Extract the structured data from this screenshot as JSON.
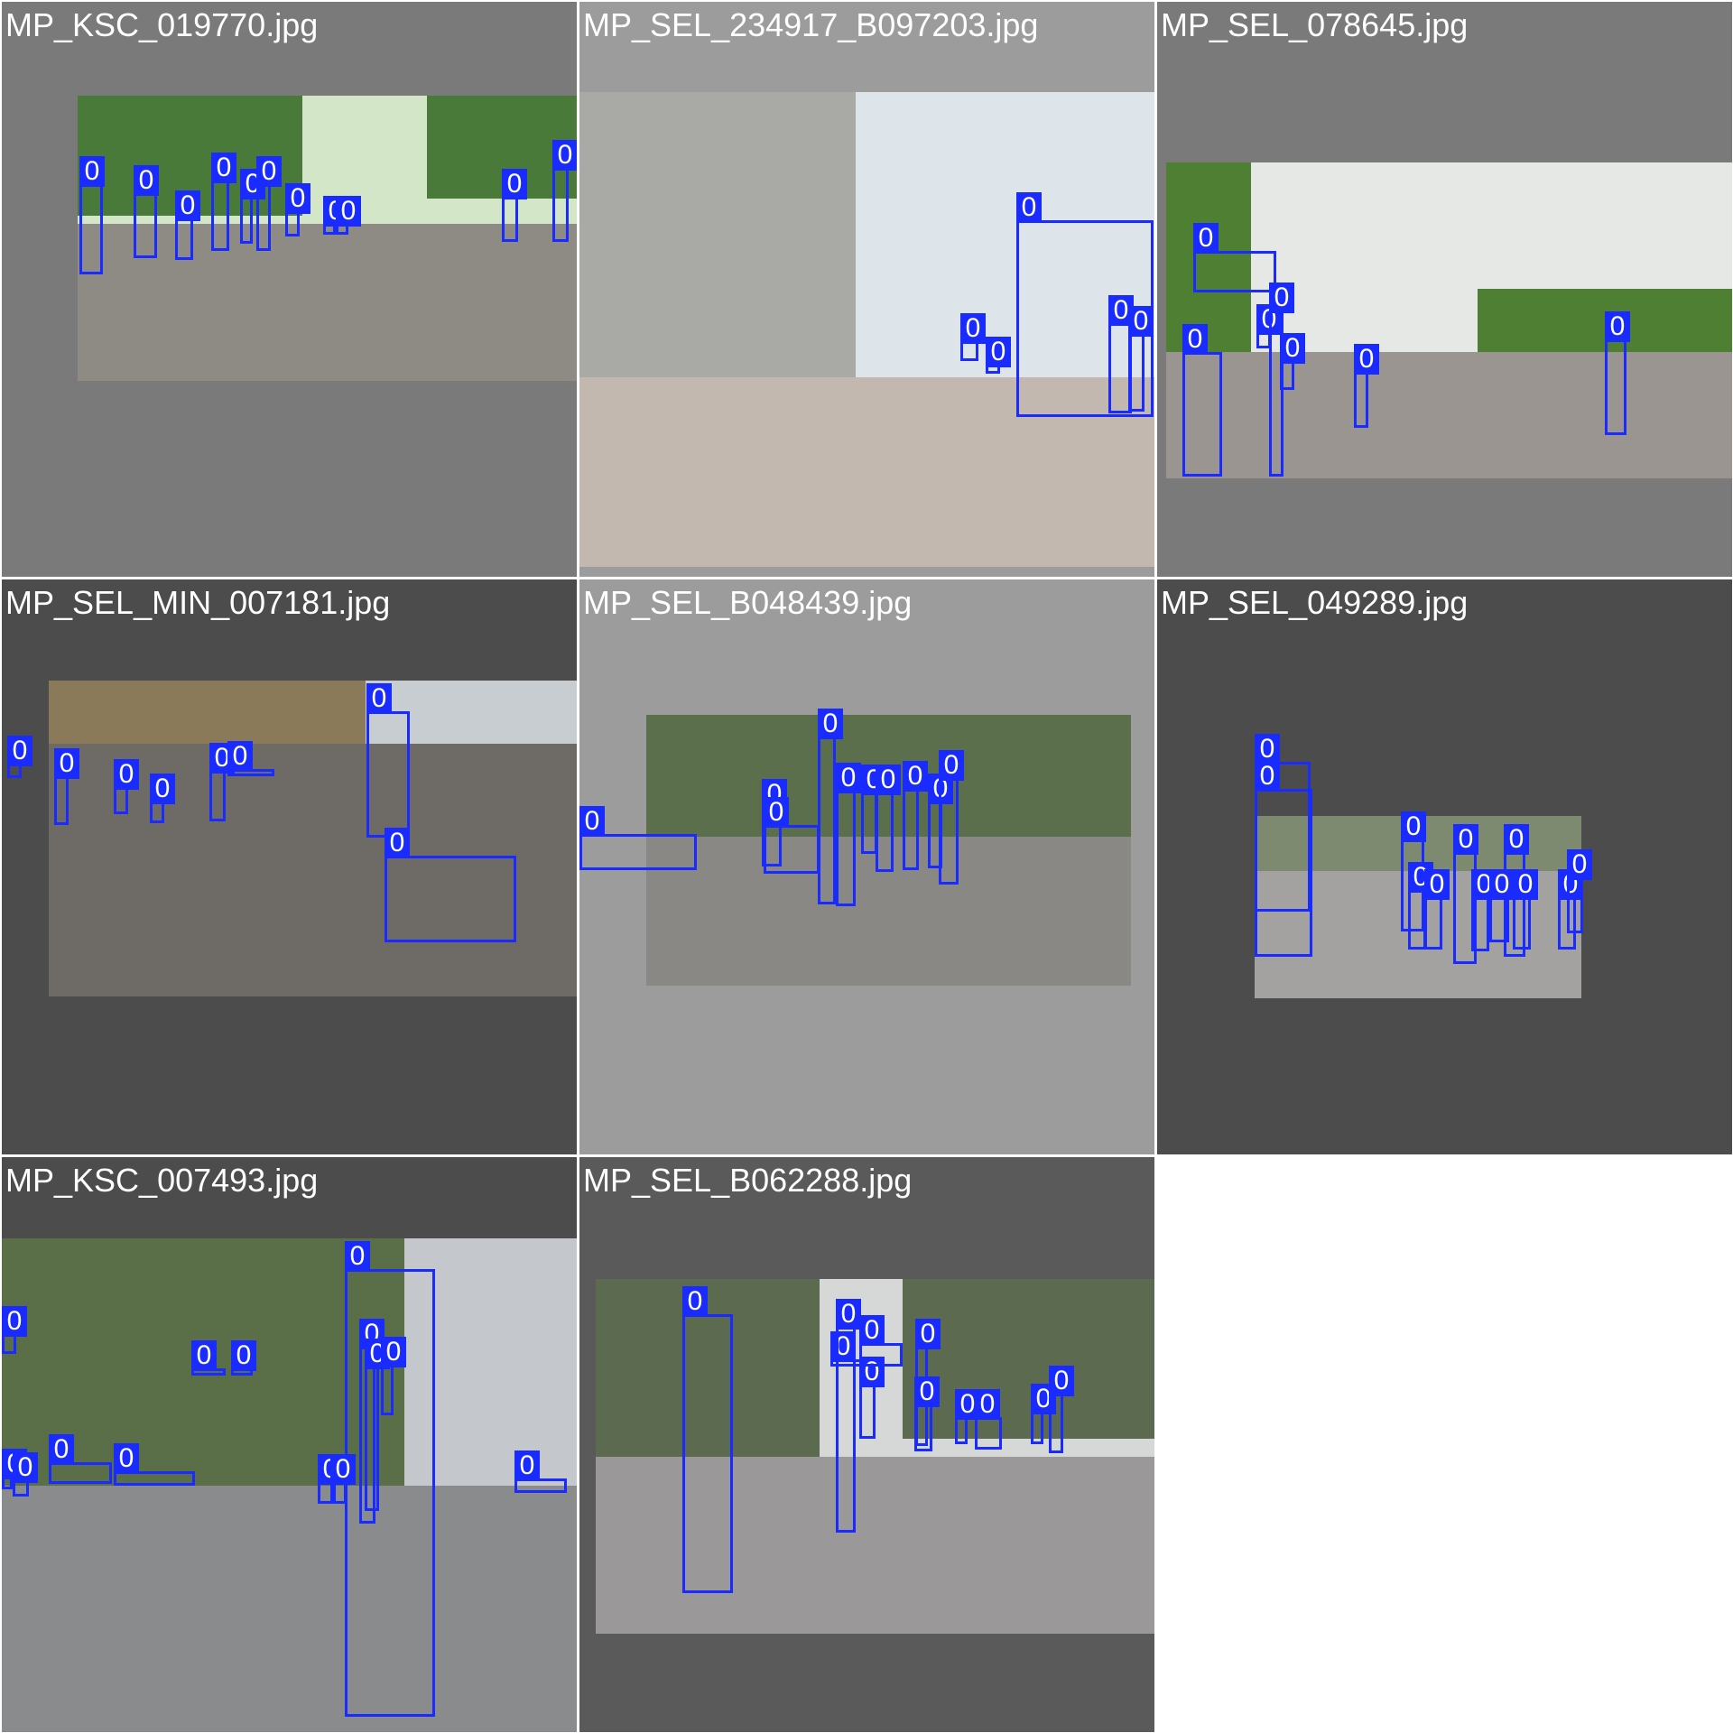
{
  "box_color": "#1a2bff",
  "images": [
    {
      "filename": "MP_KSC_019770.jpg",
      "bg": "#7a7a7a",
      "text_color": "#ffffff",
      "scene": {
        "sky": "#d4e6c8",
        "foliage": "#4a7a3a",
        "ground": "#8e8a84"
      },
      "boxes": [
        {
          "label": "0"
        },
        {
          "label": "0"
        },
        {
          "label": "0"
        },
        {
          "label": "0"
        },
        {
          "label": "0"
        },
        {
          "label": "0"
        },
        {
          "label": "0"
        },
        {
          "label": "0"
        },
        {
          "label": "0"
        },
        {
          "label": "0"
        },
        {
          "label": "0"
        }
      ]
    },
    {
      "filename": "MP_SEL_234917_B097203.jpg",
      "bg": "#9c9c9c",
      "text_color": "#ffffff",
      "scene": {
        "sky": "#dde4ea",
        "foliage": "#a9a9a6",
        "ground": "#c2b8b0"
      },
      "boxes": [
        {
          "label": "0"
        },
        {
          "label": "0"
        },
        {
          "label": "0"
        },
        {
          "label": "0"
        },
        {
          "label": "0"
        }
      ]
    },
    {
      "filename": "MP_SEL_078645.jpg",
      "bg": "#7a7a7a",
      "text_color": "#ffffff",
      "scene": {
        "sky": "#e6e8e6",
        "foliage": "#4f7f33",
        "ground": "#9a9590"
      },
      "boxes": [
        {
          "label": "0"
        },
        {
          "label": "0"
        },
        {
          "label": "0"
        },
        {
          "label": "0"
        },
        {
          "label": "0"
        },
        {
          "label": "0"
        },
        {
          "label": "0"
        }
      ]
    },
    {
      "filename": "MP_SEL_MIN_007181.jpg",
      "bg": "#4c4c4c",
      "text_color": "#ffffff",
      "scene": {
        "sky": "#c8cdd2",
        "foliage": "#8a7a5a",
        "ground": "#6e6a66"
      },
      "boxes": [
        {
          "label": "0"
        },
        {
          "label": "0"
        },
        {
          "label": "0"
        },
        {
          "label": "0"
        },
        {
          "label": "0"
        },
        {
          "label": "0"
        },
        {
          "label": "0"
        },
        {
          "label": "0"
        }
      ]
    },
    {
      "filename": "MP_SEL_B048439.jpg",
      "bg": "#9c9c9c",
      "text_color": "#ffffff",
      "scene": {
        "sky": "#b9c4b6",
        "foliage": "#5b6f4d",
        "ground": "#8a8884"
      },
      "boxes": [
        {
          "label": "0"
        },
        {
          "label": "0"
        },
        {
          "label": "0"
        },
        {
          "label": "0"
        },
        {
          "label": "0"
        },
        {
          "label": "0"
        },
        {
          "label": "0"
        },
        {
          "label": "0"
        },
        {
          "label": "0"
        },
        {
          "label": "0"
        }
      ]
    },
    {
      "filename": "MP_SEL_049289.jpg",
      "bg": "#4c4c4c",
      "text_color": "#ffffff",
      "scene": {
        "sky": "#c9ced1",
        "foliage": "#7d8a70",
        "ground": "#a4a2a0"
      },
      "boxes": [
        {
          "label": "0"
        },
        {
          "label": "0"
        },
        {
          "label": "0"
        },
        {
          "label": "0"
        },
        {
          "label": "0"
        },
        {
          "label": "0"
        },
        {
          "label": "0"
        },
        {
          "label": "0"
        },
        {
          "label": "0"
        },
        {
          "label": "0"
        },
        {
          "label": "0"
        },
        {
          "label": "0"
        }
      ]
    },
    {
      "filename": "MP_KSC_007493.jpg",
      "bg": "#4c4c4c",
      "text_color": "#ffffff",
      "scene": {
        "sky": "#c4c8cc",
        "foliage": "#5a6e48",
        "ground": "#8a8b8d"
      },
      "boxes": [
        {
          "label": "0"
        },
        {
          "label": "0"
        },
        {
          "label": "0"
        },
        {
          "label": "0"
        },
        {
          "label": "0"
        },
        {
          "label": "0"
        },
        {
          "label": "0"
        },
        {
          "label": "0"
        },
        {
          "label": "0"
        },
        {
          "label": "0"
        },
        {
          "label": "0"
        },
        {
          "label": "0"
        },
        {
          "label": "0"
        },
        {
          "label": "0"
        }
      ]
    },
    {
      "filename": "MP_SEL_B062288.jpg",
      "bg": "#5a5a5a",
      "text_color": "#ffffff",
      "scene": {
        "sky": "#d6d8d8",
        "foliage": "#5c6a50",
        "ground": "#9a9898"
      },
      "boxes": [
        {
          "label": "0"
        },
        {
          "label": "0"
        },
        {
          "label": "0"
        },
        {
          "label": "0"
        },
        {
          "label": "0"
        },
        {
          "label": "0"
        },
        {
          "label": "0"
        },
        {
          "label": "0"
        },
        {
          "label": "0"
        },
        {
          "label": "0"
        },
        {
          "label": "0"
        },
        {
          "label": "0"
        }
      ]
    }
  ]
}
